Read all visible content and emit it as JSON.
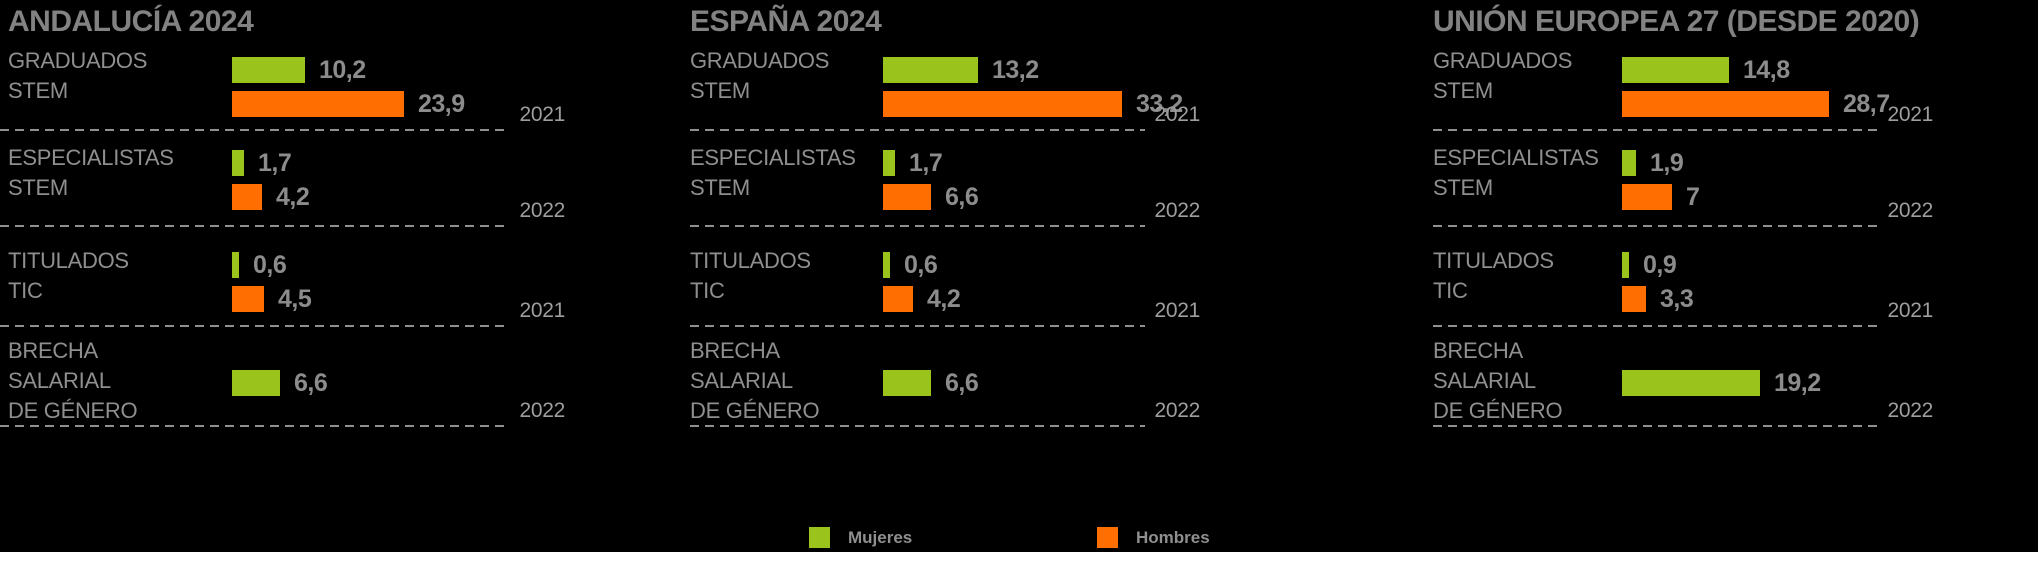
{
  "colors": {
    "background": "#000000",
    "mujeres": "#9ac31c",
    "hombres": "#ff6e00",
    "title_text": "#828282",
    "label_text": "#8f8f8f",
    "value_text": "#8c8c8c",
    "year_text": "#9e9e9e",
    "footer_strip": "#ffffff"
  },
  "legend": {
    "items": [
      {
        "label": "Mujeres",
        "color": "#9ac31c"
      },
      {
        "label": "Hombres",
        "color": "#ff6e00"
      }
    ]
  },
  "chart_data": {
    "type": "bar",
    "orientation": "horizontal",
    "series_names": [
      "Mujeres",
      "Hombres"
    ],
    "legend_position": "bottom",
    "grid": "dashed row separators with year annotation at right",
    "panels": [
      {
        "title": "ANDALUCÍA 2024",
        "rows": [
          {
            "label_lines": [
              "GRADUADOS",
              "STEM"
            ],
            "mujeres": 10.2,
            "mujeres_display": "10,2",
            "hombres": 23.9,
            "hombres_display": "23,9",
            "year": "2021"
          },
          {
            "label_lines": [
              "ESPECIALISTAS",
              "STEM"
            ],
            "mujeres": 1.7,
            "mujeres_display": "1,7",
            "hombres": 4.2,
            "hombres_display": "4,2",
            "year": "2022"
          },
          {
            "label_lines": [
              "TITULADOS",
              "TIC"
            ],
            "mujeres": 0.6,
            "mujeres_display": "0,6",
            "hombres": 4.5,
            "hombres_display": "4,5",
            "year": "2021"
          },
          {
            "label_lines": [
              "BRECHA",
              "SALARIAL",
              "DE GÉNERO"
            ],
            "mujeres": 6.6,
            "mujeres_display": "6,6",
            "hombres": null,
            "hombres_display": null,
            "year": "2022"
          }
        ]
      },
      {
        "title": "ESPAÑA 2024",
        "rows": [
          {
            "label_lines": [
              "GRADUADOS",
              "STEM"
            ],
            "mujeres": 13.2,
            "mujeres_display": "13,2",
            "hombres": 33.2,
            "hombres_display": "33,2",
            "year": "2021"
          },
          {
            "label_lines": [
              "ESPECIALISTAS",
              "STEM"
            ],
            "mujeres": 1.7,
            "mujeres_display": "1,7",
            "hombres": 6.6,
            "hombres_display": "6,6",
            "year": "2022"
          },
          {
            "label_lines": [
              "TITULADOS",
              "TIC"
            ],
            "mujeres": 0.6,
            "mujeres_display": "0,6",
            "hombres": 4.2,
            "hombres_display": "4,2",
            "year": "2021"
          },
          {
            "label_lines": [
              "BRECHA",
              "SALARIAL",
              "DE GÉNERO"
            ],
            "mujeres": 6.6,
            "mujeres_display": "6,6",
            "hombres": null,
            "hombres_display": null,
            "year": "2022"
          }
        ]
      },
      {
        "title": "UNIÓN EUROPEA 27 (DESDE 2020)",
        "rows": [
          {
            "label_lines": [
              "GRADUADOS",
              "STEM"
            ],
            "mujeres": 14.8,
            "mujeres_display": "14,8",
            "hombres": 28.7,
            "hombres_display": "28,7",
            "year": "2021"
          },
          {
            "label_lines": [
              "ESPECIALISTAS",
              "STEM"
            ],
            "mujeres": 1.9,
            "mujeres_display": "1,9",
            "hombres": 7,
            "hombres_display": "7",
            "year": "2022"
          },
          {
            "label_lines": [
              "TITULADOS",
              "TIC"
            ],
            "mujeres": 0.9,
            "mujeres_display": "0,9",
            "hombres": 3.3,
            "hombres_display": "3,3",
            "year": "2021"
          },
          {
            "label_lines": [
              "BRECHA",
              "SALARIAL",
              "DE GÉNERO"
            ],
            "mujeres": 19.2,
            "mujeres_display": "19,2",
            "hombres": null,
            "hombres_display": null,
            "year": "2022"
          }
        ]
      }
    ]
  }
}
